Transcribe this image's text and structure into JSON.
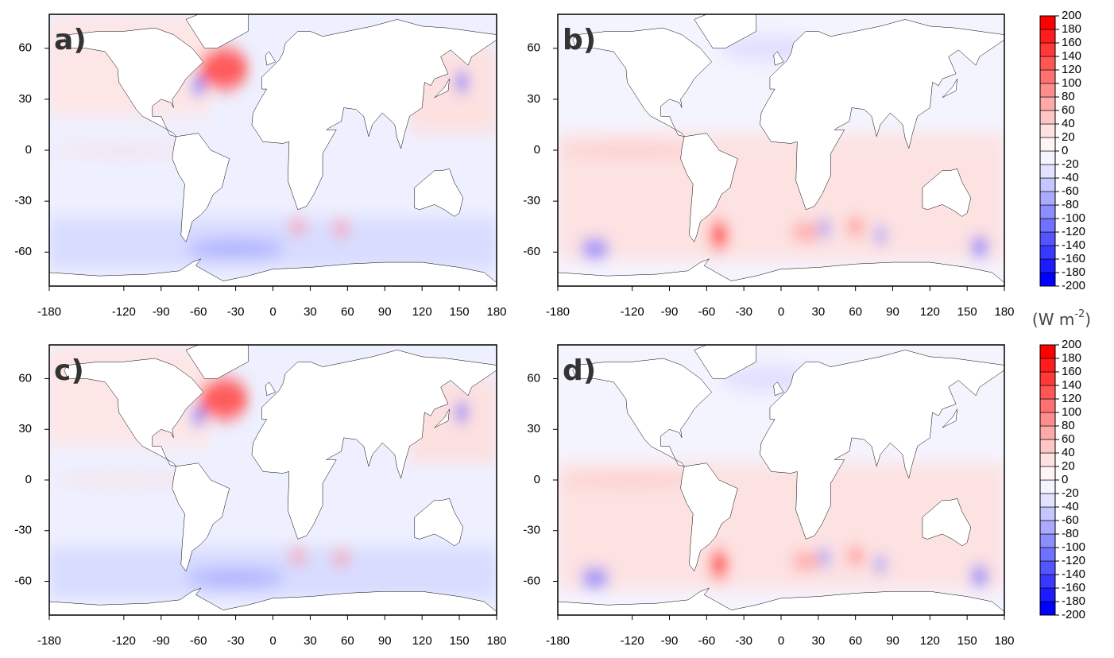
{
  "panels": [
    {
      "label": "a)",
      "xlim": [
        -180,
        180
      ],
      "ylim": [
        -80,
        80
      ],
      "xticks": [
        -180,
        -120,
        -90,
        -60,
        -30,
        0,
        30,
        60,
        90,
        120,
        150,
        180
      ],
      "yticks": [
        -60,
        -30,
        0,
        30,
        60
      ]
    },
    {
      "label": "b)",
      "xlim": [
        -180,
        180
      ],
      "ylim": [
        -80,
        80
      ],
      "xticks": [
        -180,
        -120,
        -90,
        -60,
        -30,
        0,
        30,
        60,
        90,
        120,
        150,
        180
      ],
      "yticks": [
        -60,
        -30,
        0,
        30,
        60
      ]
    },
    {
      "label": "c)",
      "xlim": [
        -180,
        180
      ],
      "ylim": [
        -80,
        80
      ],
      "xticks": [
        -180,
        -120,
        -90,
        -60,
        -30,
        0,
        30,
        60,
        90,
        120,
        150,
        180
      ],
      "yticks": [
        -60,
        -30,
        0,
        30,
        60
      ]
    },
    {
      "label": "d)",
      "xlim": [
        -180,
        180
      ],
      "ylim": [
        -80,
        80
      ],
      "xticks": [
        -180,
        -120,
        -90,
        -60,
        -30,
        0,
        30,
        60,
        90,
        120,
        150,
        180
      ],
      "yticks": [
        -60,
        -30,
        0,
        30,
        60
      ]
    }
  ],
  "colorbars": [
    {
      "levels": [
        -200,
        -180,
        -160,
        -140,
        -120,
        -100,
        -80,
        -60,
        -40,
        -20,
        0,
        20,
        40,
        60,
        80,
        100,
        120,
        140,
        160,
        180,
        200
      ],
      "colors": [
        "#0000ff",
        "#1c1cff",
        "#3838ff",
        "#5555ff",
        "#7171ff",
        "#8d8dff",
        "#aaaaff",
        "#c6c6ff",
        "#e2e2ff",
        "#f5f5ff",
        "#fff5f5",
        "#ffe2e2",
        "#ffc6c6",
        "#ffaaaa",
        "#ff8d8d",
        "#ff7171",
        "#ff5555",
        "#ff3838",
        "#ff1c1c",
        "#ff0000"
      ]
    },
    {
      "levels": [
        -200,
        -180,
        -160,
        -140,
        -120,
        -100,
        -80,
        -60,
        -40,
        -20,
        0,
        20,
        40,
        60,
        80,
        100,
        120,
        140,
        160,
        180,
        200
      ],
      "colors": [
        "#0000ff",
        "#1c1cff",
        "#3838ff",
        "#5555ff",
        "#7171ff",
        "#8d8dff",
        "#aaaaff",
        "#c6c6ff",
        "#e2e2ff",
        "#f5f5ff",
        "#fff5f5",
        "#ffe2e2",
        "#ffc6c6",
        "#ffaaaa",
        "#ff8d8d",
        "#ff7171",
        "#ff5555",
        "#ff3838",
        "#ff1c1c",
        "#ff0000"
      ]
    }
  ],
  "unit": {
    "open": "(W m",
    "sup": "-2",
    "close": ")"
  }
}
